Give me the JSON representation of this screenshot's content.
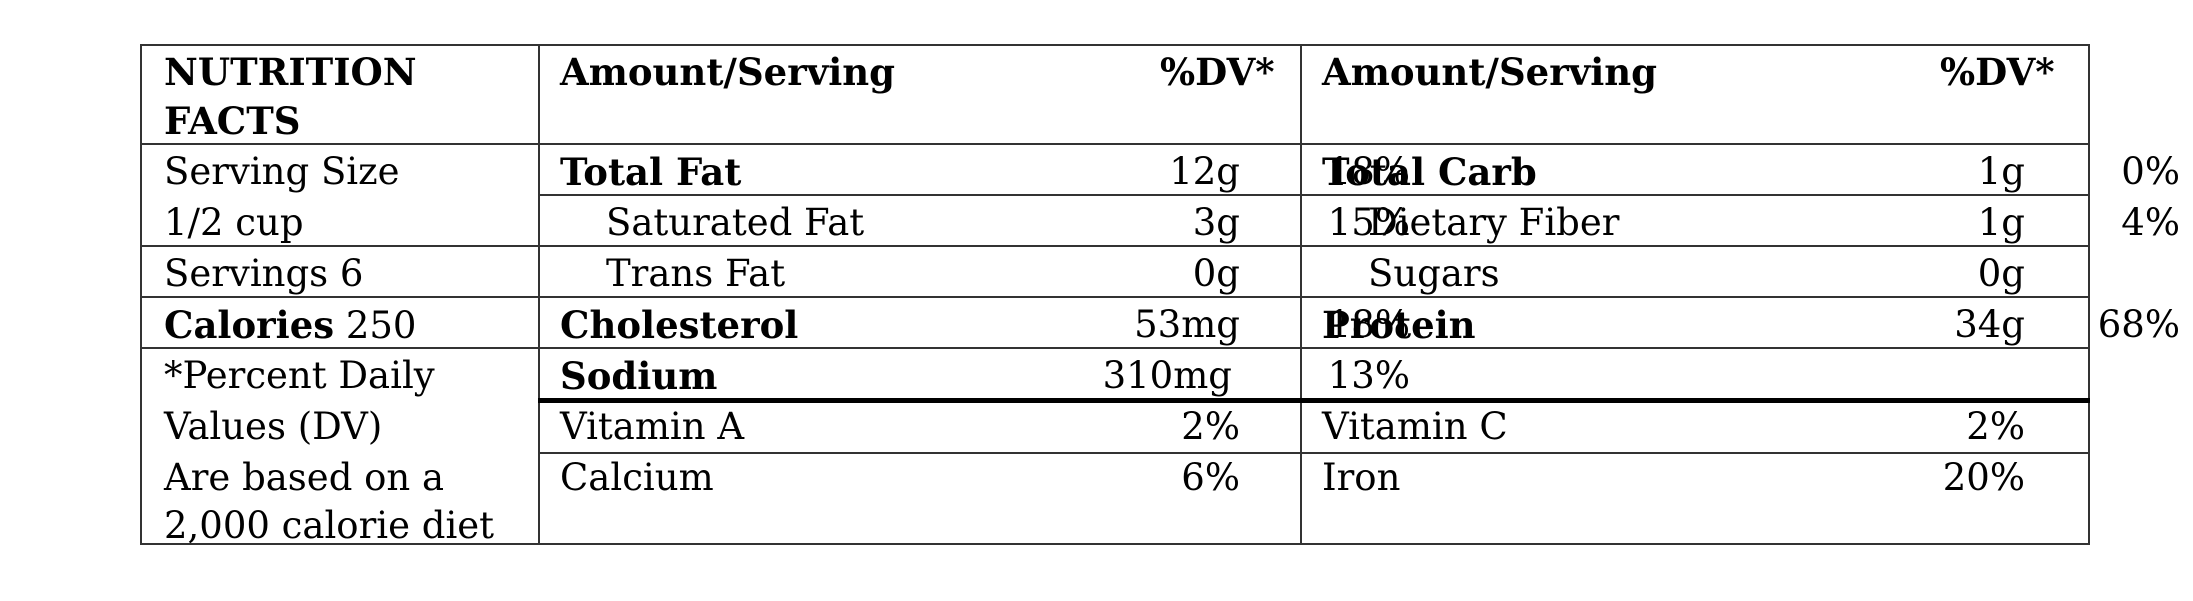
{
  "header": {
    "title_line1": "NUTRITION",
    "title_line2": "FACTS",
    "amount_serving_left": "Amount/Serving",
    "dv_left": "%DV*",
    "amount_serving_right": "Amount/Serving",
    "dv_right": "%DV*"
  },
  "info": {
    "serving_size_line1": "Serving Size",
    "serving_size_line2": "1/2 cup",
    "servings": "Servings 6",
    "calories_label": "Calories",
    "calories_value": "250",
    "footnote": [
      "*Percent Daily",
      "Values (DV)",
      "Are based on a",
      "2,000 calorie diet"
    ]
  },
  "left_nutrients": [
    {
      "name": "Total Fat",
      "amount": "12g",
      "dv": "18%"
    },
    {
      "name": "Saturated Fat",
      "amount": "3g",
      "dv": "15%"
    },
    {
      "name": "Trans Fat",
      "amount": "0g",
      "dv": ""
    },
    {
      "name": "Cholesterol",
      "amount": "53mg",
      "dv": "18%"
    },
    {
      "name": "Sodium",
      "amount": "310mg",
      "dv": "13%"
    }
  ],
  "right_nutrients": [
    {
      "name": "Total Carb",
      "amount": "1g",
      "dv": "0%"
    },
    {
      "name": "Dietary Fiber",
      "amount": "1g",
      "dv": "4%"
    },
    {
      "name": "Sugars",
      "amount": "0g",
      "dv": ""
    },
    {
      "name": "Protein",
      "amount": "34g",
      "dv": "68%"
    }
  ],
  "vitamins": {
    "vitamin_a": {
      "name": "Vitamin A",
      "dv": "2%"
    },
    "calcium": {
      "name": "Calcium",
      "dv": "6%"
    },
    "vitamin_c": {
      "name": "Vitamin C",
      "dv": "2%"
    },
    "iron": {
      "name": "Iron",
      "dv": "20%"
    }
  }
}
